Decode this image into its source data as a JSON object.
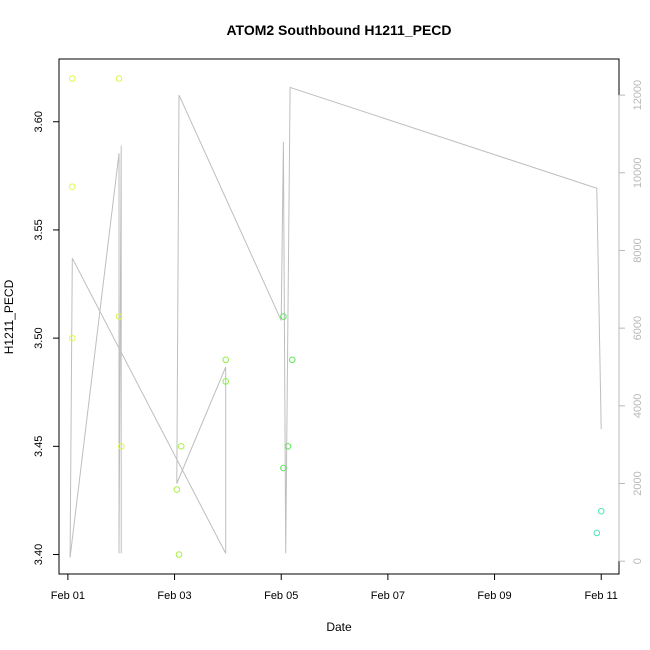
{
  "chart_data": {
    "type": "scatter",
    "title": "ATOM2 Southbound H1211_PECD",
    "xlabel": "Date",
    "ylabel": "H1211_PECD",
    "x_ticks": [
      "Feb 01",
      "Feb 03",
      "Feb 05",
      "Feb 07",
      "Feb 09",
      "Feb 11"
    ],
    "y_ticks": [
      "3.40",
      "3.45",
      "3.50",
      "3.55",
      "3.60"
    ],
    "y2_ticks": [
      "0",
      "2000",
      "4000",
      "6000",
      "8000",
      "10000",
      "12000"
    ],
    "xlim": [
      "2018-01-31T20:00",
      "2018-02-11T08:00"
    ],
    "ylim": [
      3.391,
      3.629
    ],
    "y2lim": [
      -330,
      12930
    ],
    "grid": false,
    "legend": "none",
    "colors": {
      "frame": "#000000",
      "line": "#bebebe",
      "right_axis": "#b8b8b8"
    },
    "points": [
      {
        "x": "2018-02-01T02:00",
        "y": 3.62,
        "color": "#e2f74a"
      },
      {
        "x": "2018-02-01T02:00",
        "y": 3.57,
        "color": "#e2f74a"
      },
      {
        "x": "2018-02-01T02:00",
        "y": 3.5,
        "color": "#e2f74a"
      },
      {
        "x": "2018-02-01T23:00",
        "y": 3.62,
        "color": "#dcf74a"
      },
      {
        "x": "2018-02-01T23:00",
        "y": 3.51,
        "color": "#dcf74a"
      },
      {
        "x": "2018-02-02T00:00",
        "y": 3.45,
        "color": "#dcf74a"
      },
      {
        "x": "2018-02-03T01:00",
        "y": 3.43,
        "color": "#a8f04a"
      },
      {
        "x": "2018-02-03T02:00",
        "y": 3.4,
        "color": "#a8f04a"
      },
      {
        "x": "2018-02-03T03:00",
        "y": 3.45,
        "color": "#a8f04a"
      },
      {
        "x": "2018-02-03T23:00",
        "y": 3.49,
        "color": "#8cee4a"
      },
      {
        "x": "2018-02-03T23:00",
        "y": 3.48,
        "color": "#8cee4a"
      },
      {
        "x": "2018-02-05T01:00",
        "y": 3.51,
        "color": "#5ee65c"
      },
      {
        "x": "2018-02-05T01:00",
        "y": 3.44,
        "color": "#5ee65c"
      },
      {
        "x": "2018-02-05T03:00",
        "y": 3.45,
        "color": "#5ee65c"
      },
      {
        "x": "2018-02-05T05:00",
        "y": 3.49,
        "color": "#5ee65c"
      },
      {
        "x": "2018-02-10T22:00",
        "y": 3.41,
        "color": "#4ae6ba"
      },
      {
        "x": "2018-02-11T00:00",
        "y": 3.42,
        "color": "#4ae6ba"
      }
    ],
    "line_series": [
      {
        "x": "2018-02-01T01:00",
        "y2": 100
      },
      {
        "x": "2018-02-01T02:00",
        "y2": 7800
      },
      {
        "x": "2018-02-03T23:00",
        "y2": 200
      },
      {
        "x": "2018-02-03T23:00",
        "y2": 5000
      },
      {
        "x": "2018-02-03T01:00",
        "y2": 2000
      },
      {
        "x": "2018-02-03T02:00",
        "y2": 12000
      },
      {
        "x": "2018-02-05T00:00",
        "y2": 6200
      },
      {
        "x": "2018-02-05T01:00",
        "y2": 10800
      },
      {
        "x": "2018-02-05T02:00",
        "y2": 200
      },
      {
        "x": "2018-02-05T04:00",
        "y2": 12200
      },
      {
        "x": "2018-02-10T22:00",
        "y2": 9600
      },
      {
        "x": "2018-02-11T00:00",
        "y2": 3400
      }
    ],
    "line_series_2": [
      {
        "x": "2018-02-01T01:00",
        "y2": 100
      },
      {
        "x": "2018-02-01T23:00",
        "y2": 10500
      },
      {
        "x": "2018-02-01T23:00",
        "y2": 200
      },
      {
        "x": "2018-02-02T00:00",
        "y2": 10700
      },
      {
        "x": "2018-02-02T00:00",
        "y2": 200
      }
    ]
  }
}
